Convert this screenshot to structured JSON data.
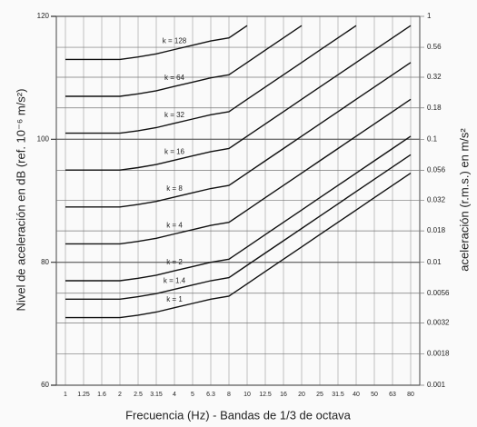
{
  "chart_data": {
    "type": "line",
    "y_label": "Nivel de aceleración en dB (ref. 10⁻⁶ m/s²)",
    "y2_label": "aceleración (r.m.s.) en m/s²",
    "x_label": "Frecuencia (Hz) - Bandas de 1/3 de octava",
    "categories": [
      "1",
      "1.25",
      "1.6",
      "2",
      "2.5",
      "3.15",
      "4",
      "5",
      "6.3",
      "8",
      "10",
      "12.5",
      "16",
      "20",
      "25",
      "31.5",
      "40",
      "50",
      "63",
      "80"
    ],
    "ylim": [
      60,
      120
    ],
    "yticks": [
      60,
      80,
      100,
      120
    ],
    "y2lim": [
      0.001,
      1
    ],
    "y2_log": true,
    "y2ticks": [
      1,
      0.56,
      0.32,
      0.18,
      0.1,
      0.056,
      0.032,
      0.018,
      0.01,
      0.0056,
      0.0032,
      0.0018,
      0.001
    ],
    "grid": true,
    "series": [
      {
        "name": "k = 1",
        "color": "#111",
        "values": [
          71,
          71,
          71,
          71,
          71.4,
          71.9,
          72.6,
          73.3,
          74,
          74.5,
          76.5,
          78.5,
          80.5,
          82.5,
          84.5,
          86.5,
          88.5,
          90.5,
          92.5,
          94.5
        ]
      },
      {
        "name": "k = 1.4",
        "color": "#111",
        "values": [
          74,
          74,
          74,
          74,
          74.4,
          74.9,
          75.6,
          76.3,
          77,
          77.5,
          79.5,
          81.5,
          83.5,
          85.5,
          87.5,
          89.5,
          91.5,
          93.5,
          95.5,
          97.5
        ]
      },
      {
        "name": "k = 2",
        "color": "#111",
        "values": [
          77,
          77,
          77,
          77,
          77.4,
          77.9,
          78.6,
          79.3,
          80,
          80.5,
          82.5,
          84.5,
          86.5,
          88.5,
          90.5,
          92.5,
          94.5,
          96.5,
          98.5,
          100.5
        ]
      },
      {
        "name": "k = 4",
        "color": "#111",
        "values": [
          83,
          83,
          83,
          83,
          83.4,
          83.9,
          84.6,
          85.3,
          86,
          86.5,
          88.5,
          90.5,
          92.5,
          94.5,
          96.5,
          98.5,
          100.5,
          102.5,
          104.5,
          106.5
        ]
      },
      {
        "name": "k = 8",
        "color": "#111",
        "values": [
          89,
          89,
          89,
          89,
          89.4,
          89.9,
          90.6,
          91.3,
          92,
          92.5,
          94.5,
          96.5,
          98.5,
          100.5,
          102.5,
          104.5,
          106.5,
          108.5,
          110.5,
          112.5
        ]
      },
      {
        "name": "k = 16",
        "color": "#111",
        "values": [
          95,
          95,
          95,
          95,
          95.4,
          95.9,
          96.6,
          97.3,
          98,
          98.5,
          100.5,
          102.5,
          104.5,
          106.5,
          108.5,
          110.5,
          112.5,
          114.5,
          116.5,
          118.5
        ]
      },
      {
        "name": "k = 32",
        "color": "#111",
        "values": [
          101,
          101,
          101,
          101,
          101.4,
          101.9,
          102.6,
          103.3,
          104,
          104.5,
          106.5,
          108.5,
          110.5,
          112.5,
          114.5,
          116.5,
          118.5,
          null,
          null,
          null
        ]
      },
      {
        "name": "k = 64",
        "color": "#111",
        "values": [
          107,
          107,
          107,
          107,
          107.4,
          107.9,
          108.6,
          109.3,
          110,
          110.5,
          112.5,
          114.5,
          116.5,
          118.5,
          null,
          null,
          null,
          null,
          null,
          null
        ]
      },
      {
        "name": "k = 128",
        "color": "#111",
        "values": [
          113,
          113,
          113,
          113,
          113.4,
          113.9,
          114.6,
          115.3,
          116,
          116.5,
          118.5,
          null,
          null,
          null,
          null,
          null,
          null,
          null,
          null,
          null
        ]
      }
    ]
  }
}
